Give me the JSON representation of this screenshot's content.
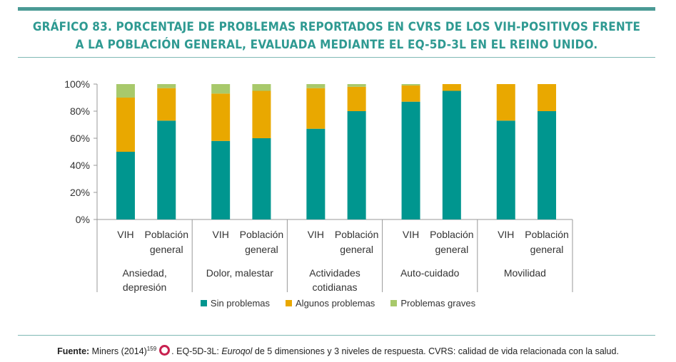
{
  "header": {
    "title_line1": "GRÁFICO 83. PORCENTAJE DE PROBLEMAS REPORTADOS EN CVRS DE LOS VIH-POSITIVOS FRENTE",
    "title_line2": "A LA POBLACIÓN GENERAL, EVALUADA MEDIANTE EL EQ-5D-3L EN EL REINO UNIDO."
  },
  "colors": {
    "accent": "#2f9a92",
    "sin_problemas": "#00968f",
    "algunos_problemas": "#e9a800",
    "problemas_graves": "#a8c96b"
  },
  "chart_data": {
    "type": "bar",
    "stacked": true,
    "y_tick_labels": [
      "0%",
      "20%",
      "40%",
      "60%",
      "80%",
      "100%"
    ],
    "ylim": [
      0,
      100
    ],
    "groups": [
      {
        "label_lines": [
          "Ansiedad,",
          "depresión"
        ],
        "bars": [
          {
            "label_lines": [
              "VIH"
            ],
            "values": [
              50,
              40,
              10
            ]
          },
          {
            "label_lines": [
              "Población",
              "general"
            ],
            "values": [
              73,
              24,
              3
            ]
          }
        ]
      },
      {
        "label_lines": [
          "Dolor, malestar"
        ],
        "bars": [
          {
            "label_lines": [
              "VIH"
            ],
            "values": [
              58,
              35,
              7
            ]
          },
          {
            "label_lines": [
              "Población",
              "general"
            ],
            "values": [
              60,
              35,
              5
            ]
          }
        ]
      },
      {
        "label_lines": [
          "Actividades",
          "cotidianas"
        ],
        "bars": [
          {
            "label_lines": [
              "VIH"
            ],
            "values": [
              67,
              30,
              3
            ]
          },
          {
            "label_lines": [
              "Población",
              "general"
            ],
            "values": [
              80,
              18,
              2
            ]
          }
        ]
      },
      {
        "label_lines": [
          "Auto-cuidado"
        ],
        "bars": [
          {
            "label_lines": [
              "VIH"
            ],
            "values": [
              87,
              12,
              1
            ]
          },
          {
            "label_lines": [
              "Población",
              "general"
            ],
            "values": [
              95,
              5,
              0
            ]
          }
        ]
      },
      {
        "label_lines": [
          "Movilidad"
        ],
        "bars": [
          {
            "label_lines": [
              "VIH"
            ],
            "values": [
              73,
              27,
              0
            ]
          },
          {
            "label_lines": [
              "Población",
              "general"
            ],
            "values": [
              80,
              20,
              0
            ]
          }
        ]
      }
    ],
    "series": [
      {
        "name": "Sin problemas"
      },
      {
        "name": "Algunos problemas"
      },
      {
        "name": "Problemas graves"
      }
    ],
    "legend_position": "bottom",
    "grid": false
  },
  "footer": {
    "source_label": "Fuente:",
    "source_author": " Miners (2014)",
    "source_ref": "159",
    "text_part1": ". EQ-5D-3L: ",
    "text_italic": "Euroqol",
    "text_part2": " de 5 dimensiones y 3 niveles de respuesta. CVRS: calidad de vida relacionada con la salud."
  }
}
